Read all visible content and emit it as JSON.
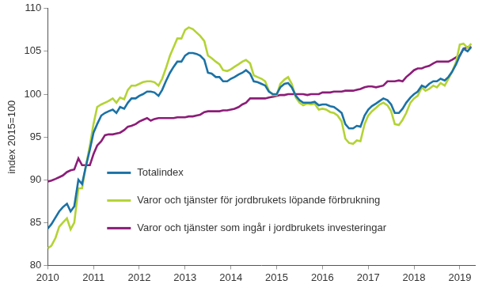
{
  "chart_data": {
    "type": "line",
    "y_label": "index 2015=100",
    "xlim": [
      2010,
      2019.33
    ],
    "xticks": [
      2010,
      2011,
      2012,
      2013,
      2014,
      2015,
      2016,
      2017,
      2018,
      2019
    ],
    "ylim": [
      80,
      110
    ],
    "yticks": [
      80,
      85,
      90,
      95,
      100,
      105,
      110
    ],
    "grid": false,
    "legend": "bottom left",
    "x": [
      2010,
      2010.08,
      2010.17,
      2010.25,
      2010.33,
      2010.42,
      2010.5,
      2010.58,
      2010.67,
      2010.75,
      2010.83,
      2010.92,
      2011,
      2011.08,
      2011.17,
      2011.25,
      2011.33,
      2011.42,
      2011.5,
      2011.58,
      2011.67,
      2011.75,
      2011.83,
      2011.92,
      2012,
      2012.08,
      2012.17,
      2012.25,
      2012.33,
      2012.42,
      2012.5,
      2012.58,
      2012.67,
      2012.75,
      2012.83,
      2012.92,
      2013,
      2013.08,
      2013.17,
      2013.25,
      2013.33,
      2013.42,
      2013.5,
      2013.58,
      2013.67,
      2013.75,
      2013.83,
      2013.92,
      2014,
      2014.08,
      2014.17,
      2014.25,
      2014.33,
      2014.42,
      2014.5,
      2014.58,
      2014.67,
      2014.75,
      2014.83,
      2014.92,
      2015,
      2015.08,
      2015.17,
      2015.25,
      2015.33,
      2015.42,
      2015.5,
      2015.58,
      2015.67,
      2015.75,
      2015.83,
      2015.92,
      2016,
      2016.08,
      2016.17,
      2016.25,
      2016.33,
      2016.42,
      2016.5,
      2016.58,
      2016.67,
      2016.75,
      2016.83,
      2016.92,
      2017,
      2017.08,
      2017.17,
      2017.25,
      2017.33,
      2017.42,
      2017.5,
      2017.58,
      2017.67,
      2017.75,
      2017.83,
      2017.92,
      2018,
      2018.08,
      2018.17,
      2018.25,
      2018.33,
      2018.42,
      2018.5,
      2018.58,
      2018.67,
      2018.75,
      2018.83,
      2018.92,
      2019,
      2019.08,
      2019.17,
      2019.25
    ],
    "series": [
      {
        "name": "Totalindex",
        "color": "#1b72a6",
        "values": [
          84.3,
          84.8,
          85.6,
          86.3,
          86.8,
          87.2,
          86.3,
          86.9,
          90.0,
          89.5,
          91.5,
          93.5,
          95.5,
          96.5,
          97.5,
          97.8,
          98.0,
          98.2,
          97.8,
          98.5,
          98.3,
          99.0,
          99.5,
          99.5,
          99.8,
          100.0,
          100.3,
          100.3,
          100.2,
          99.8,
          100.5,
          101.5,
          102.5,
          103.2,
          103.8,
          103.8,
          104.5,
          104.8,
          104.8,
          104.7,
          104.5,
          104.0,
          102.5,
          102.4,
          102.0,
          102.0,
          101.5,
          101.5,
          101.8,
          102.0,
          102.3,
          102.5,
          102.8,
          102.4,
          101.5,
          101.4,
          101.2,
          101.0,
          100.3,
          100.0,
          100.0,
          100.8,
          101.2,
          101.3,
          100.8,
          99.8,
          99.3,
          99.0,
          99.0,
          99.0,
          99.1,
          98.7,
          98.8,
          98.8,
          98.6,
          98.5,
          98.2,
          97.8,
          96.5,
          96.0,
          96.0,
          96.3,
          96.2,
          97.5,
          98.2,
          98.6,
          98.9,
          99.2,
          99.5,
          99.3,
          98.8,
          97.8,
          97.8,
          98.3,
          99.0,
          99.6,
          100.0,
          100.3,
          101.0,
          100.8,
          101.2,
          101.5,
          101.5,
          101.8,
          101.6,
          102.0,
          102.6,
          103.5,
          104.5,
          105.3,
          105.0,
          105.5
        ]
      },
      {
        "name": "Varor och tjänster för jordbrukets löpande förbrukning",
        "color": "#b3d335",
        "values": [
          82.0,
          82.3,
          83.2,
          84.5,
          85.0,
          85.5,
          84.2,
          85.0,
          89.0,
          89.0,
          91.5,
          94.0,
          96.5,
          98.5,
          98.8,
          99.0,
          99.2,
          99.5,
          99.0,
          99.6,
          99.4,
          100.5,
          101.0,
          101.0,
          101.2,
          101.4,
          101.5,
          101.5,
          101.4,
          101.0,
          101.8,
          103.0,
          104.5,
          105.5,
          106.5,
          106.5,
          107.5,
          107.8,
          107.6,
          107.2,
          106.8,
          106.2,
          104.5,
          104.2,
          103.8,
          103.5,
          102.8,
          102.7,
          102.9,
          103.2,
          103.5,
          103.8,
          104.0,
          103.6,
          102.2,
          102.0,
          101.8,
          101.5,
          100.4,
          99.9,
          99.9,
          101.2,
          101.7,
          102.0,
          101.2,
          99.6,
          99.0,
          98.7,
          98.9,
          98.8,
          98.9,
          98.2,
          98.3,
          98.2,
          97.9,
          97.8,
          97.5,
          96.8,
          94.8,
          94.3,
          94.2,
          94.6,
          94.5,
          96.5,
          97.5,
          98.0,
          98.4,
          98.8,
          99.0,
          98.7,
          98.0,
          96.5,
          96.4,
          97.0,
          97.8,
          99.0,
          99.5,
          99.8,
          100.8,
          100.4,
          100.6,
          101.0,
          100.8,
          101.3,
          101.0,
          101.8,
          102.6,
          103.8,
          105.8,
          105.9,
          105.4,
          105.9
        ]
      },
      {
        "name": "Varor och tjänster som ingår i jordbrukets investeringar",
        "color": "#8c1d78",
        "values": [
          89.8,
          89.9,
          90.1,
          90.3,
          90.5,
          90.9,
          91.1,
          91.2,
          92.5,
          91.7,
          91.7,
          91.7,
          93.0,
          94.0,
          94.5,
          95.2,
          95.3,
          95.3,
          95.4,
          95.5,
          95.8,
          96.2,
          96.3,
          96.5,
          96.8,
          97.0,
          97.2,
          96.9,
          97.1,
          97.2,
          97.2,
          97.2,
          97.2,
          97.2,
          97.3,
          97.3,
          97.3,
          97.4,
          97.4,
          97.5,
          97.6,
          97.9,
          98.0,
          98.0,
          98.0,
          98.0,
          98.1,
          98.1,
          98.2,
          98.3,
          98.5,
          98.8,
          99.0,
          99.5,
          99.5,
          99.5,
          99.5,
          99.5,
          99.6,
          99.7,
          99.8,
          99.9,
          99.9,
          100.0,
          100.0,
          100.0,
          100.0,
          100.0,
          99.9,
          100.0,
          100.0,
          100.0,
          100.2,
          100.2,
          100.2,
          100.3,
          100.3,
          100.3,
          100.4,
          100.4,
          100.4,
          100.5,
          100.6,
          100.8,
          100.9,
          100.9,
          100.8,
          100.9,
          101.0,
          101.5,
          101.5,
          101.5,
          101.6,
          101.5,
          102.0,
          102.4,
          102.8,
          103.0,
          103.0,
          103.2,
          103.3,
          103.6,
          103.8,
          103.8,
          103.8,
          103.8,
          104.0,
          104.3,
          104.5,
          105.3,
          105.5,
          105.5
        ]
      }
    ]
  }
}
